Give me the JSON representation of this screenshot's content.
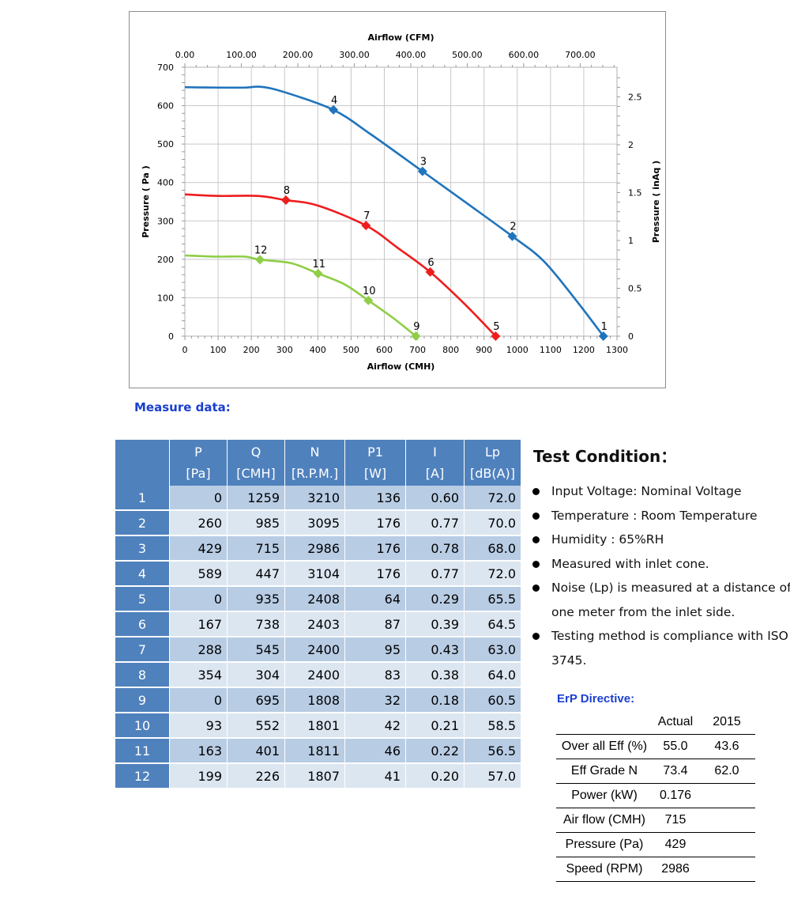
{
  "chart_data": {
    "type": "line",
    "xlabel": "Airflow (CMH)",
    "x2label": "Airflow (CFM)",
    "ylabel": "Pressure ( Pa )",
    "y2label": "Pressure ( inAq )",
    "xlim": [
      0,
      1300
    ],
    "ylim": [
      0,
      700
    ],
    "x2lim": [
      0,
      765.2
    ],
    "y2lim": [
      0,
      2.81
    ],
    "xticks": [
      "0",
      "100",
      "200",
      "300",
      "400",
      "500",
      "600",
      "700",
      "800",
      "900",
      "1000",
      "1100",
      "1200",
      "1300"
    ],
    "yticks": [
      "0",
      "100",
      "200",
      "300",
      "400",
      "500",
      "600",
      "700"
    ],
    "x2ticks": [
      "0.00",
      "100.00",
      "200.00",
      "300.00",
      "400.00",
      "500.00",
      "600.00",
      "700.00"
    ],
    "y2ticks": [
      "0",
      "0.5",
      "1",
      "1.5",
      "2",
      "2.5"
    ],
    "grid": true,
    "series": [
      {
        "color": "#1f74bc",
        "curve": [
          [
            0,
            648
          ],
          [
            100,
            647
          ],
          [
            180,
            647
          ],
          [
            230,
            649
          ],
          [
            300,
            635
          ],
          [
            447,
            589
          ],
          [
            560,
            525
          ],
          [
            715,
            429
          ],
          [
            850,
            345
          ],
          [
            985,
            260
          ],
          [
            1080,
            195
          ],
          [
            1180,
            90
          ],
          [
            1259,
            0
          ]
        ],
        "points": [
          {
            "label": "1",
            "x": 1259,
            "y": 0
          },
          {
            "label": "2",
            "x": 985,
            "y": 260
          },
          {
            "label": "3",
            "x": 715,
            "y": 429
          },
          {
            "label": "4",
            "x": 447,
            "y": 589
          }
        ]
      },
      {
        "color": "#ee1d1d",
        "curve": [
          [
            0,
            369
          ],
          [
            100,
            365
          ],
          [
            220,
            365
          ],
          [
            304,
            354
          ],
          [
            400,
            340
          ],
          [
            545,
            288
          ],
          [
            640,
            230
          ],
          [
            738,
            167
          ],
          [
            840,
            85
          ],
          [
            935,
            0
          ]
        ],
        "points": [
          {
            "label": "5",
            "x": 935,
            "y": 0
          },
          {
            "label": "6",
            "x": 738,
            "y": 167
          },
          {
            "label": "7",
            "x": 545,
            "y": 288
          },
          {
            "label": "8",
            "x": 304,
            "y": 354
          }
        ]
      },
      {
        "color": "#8fce46",
        "curve": [
          [
            0,
            210
          ],
          [
            100,
            207
          ],
          [
            180,
            207
          ],
          [
            226,
            199
          ],
          [
            320,
            190
          ],
          [
            401,
            163
          ],
          [
            480,
            135
          ],
          [
            552,
            93
          ],
          [
            630,
            45
          ],
          [
            695,
            0
          ]
        ],
        "points": [
          {
            "label": "9",
            "x": 695,
            "y": 0
          },
          {
            "label": "10",
            "x": 552,
            "y": 93
          },
          {
            "label": "11",
            "x": 401,
            "y": 163
          },
          {
            "label": "12",
            "x": 226,
            "y": 199
          }
        ]
      }
    ]
  },
  "measure": {
    "title": "Measure data:",
    "headers": [
      {
        "name": "P",
        "unit": "[Pa]"
      },
      {
        "name": "Q",
        "unit": "[CMH]"
      },
      {
        "name": "N",
        "unit": "[R.P.M.]"
      },
      {
        "name": "P1",
        "unit": "[W]"
      },
      {
        "name": "I",
        "unit": "[A]"
      },
      {
        "name": "Lp",
        "unit": "[dB(A)]"
      }
    ],
    "rows": [
      [
        "1",
        "0",
        "1259",
        "3210",
        "136",
        "0.60",
        "72.0"
      ],
      [
        "2",
        "260",
        "985",
        "3095",
        "176",
        "0.77",
        "70.0"
      ],
      [
        "3",
        "429",
        "715",
        "2986",
        "176",
        "0.78",
        "68.0"
      ],
      [
        "4",
        "589",
        "447",
        "3104",
        "176",
        "0.77",
        "72.0"
      ],
      [
        "5",
        "0",
        "935",
        "2408",
        "64",
        "0.29",
        "65.5"
      ],
      [
        "6",
        "167",
        "738",
        "2403",
        "87",
        "0.39",
        "64.5"
      ],
      [
        "7",
        "288",
        "545",
        "2400",
        "95",
        "0.43",
        "63.0"
      ],
      [
        "8",
        "354",
        "304",
        "2400",
        "83",
        "0.38",
        "64.0"
      ],
      [
        "9",
        "0",
        "695",
        "1808",
        "32",
        "0.18",
        "60.5"
      ],
      [
        "10",
        "93",
        "552",
        "1801",
        "42",
        "0.21",
        "58.5"
      ],
      [
        "11",
        "163",
        "401",
        "1811",
        "46",
        "0.22",
        "56.5"
      ],
      [
        "12",
        "199",
        "226",
        "1807",
        "41",
        "0.20",
        "57.0"
      ]
    ]
  },
  "test_condition": {
    "title": "Test Condition：",
    "items": [
      "Input Voltage: Nominal Voltage",
      "Temperature : Room Temperature",
      "Humidity : 65%RH",
      "Measured with inlet cone.",
      "Noise (Lp) is measured at a distance of",
      "one meter from the inlet side.",
      "Testing method is compliance with ISO",
      "3745."
    ]
  },
  "erp": {
    "title": "ErP Directive:",
    "col_actual": "Actual",
    "col_2015": "2015",
    "rows": [
      [
        "Over all Eff (%)",
        "55.0",
        "43.6"
      ],
      [
        "Eff Grade N",
        "73.4",
        "62.0"
      ],
      [
        "Power (kW)",
        "0.176",
        ""
      ],
      [
        "Air flow (CMH)",
        "715",
        ""
      ],
      [
        "Pressure (Pa)",
        "429",
        ""
      ],
      [
        "Speed (RPM)",
        "2986",
        ""
      ]
    ]
  }
}
